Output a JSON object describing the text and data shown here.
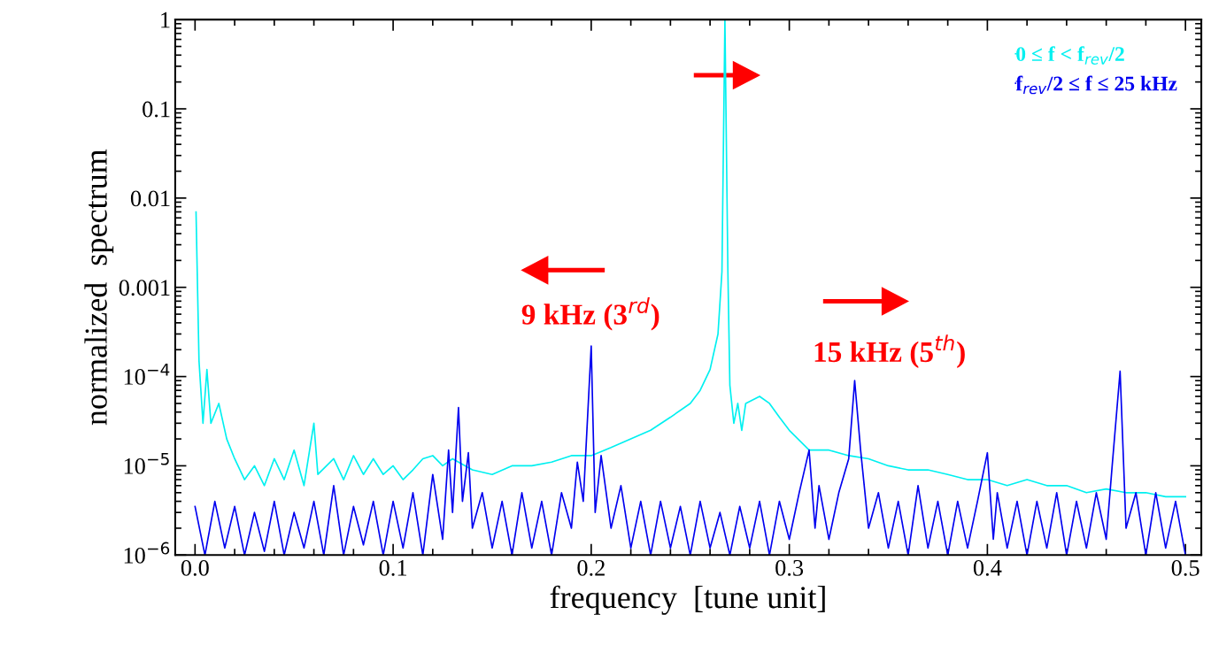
{
  "chart_data": {
    "type": "line",
    "xlabel": "frequency  [tune unit]",
    "ylabel": "normalized  spectrum",
    "xlim": [
      -0.01,
      0.508
    ],
    "ylim": [
      1e-06,
      1
    ],
    "log": "y",
    "xticks": [
      {
        "value": 0,
        "label": "0.0"
      },
      0.1,
      0.2,
      0.3,
      0.4,
      {
        "value": 0.5,
        "label": "0.5"
      }
    ],
    "yticks": [
      {
        "value": 1e-06,
        "label": "10$^{−6}$"
      },
      {
        "value": 1e-05,
        "label": "10$^{−5}$"
      },
      {
        "value": 0.0001,
        "label": "10$^{−4}$"
      },
      0.001,
      0.01,
      0.1,
      1
    ],
    "legend": "top right",
    "grid": false,
    "annotations": [
      "9 kHz (3$^{rd}$)",
      "15 kHz (5$^{th}$)"
    ],
    "series": [
      {
        "name": "0 ≤ f < f$_{rev}$/2",
        "color": "#00f0f0",
        "x": [
          0.0005,
          0.002,
          0.004,
          0.006,
          0.008,
          0.012,
          0.016,
          0.02,
          0.025,
          0.03,
          0.035,
          0.04,
          0.045,
          0.05,
          0.055,
          0.06,
          0.062,
          0.07,
          0.075,
          0.08,
          0.085,
          0.09,
          0.095,
          0.1,
          0.105,
          0.11,
          0.115,
          0.12,
          0.125,
          0.13,
          0.14,
          0.15,
          0.16,
          0.17,
          0.18,
          0.19,
          0.2,
          0.21,
          0.22,
          0.23,
          0.24,
          0.25,
          0.255,
          0.26,
          0.264,
          0.266,
          0.2675,
          0.269,
          0.27,
          0.272,
          0.274,
          0.276,
          0.278,
          0.285,
          0.29,
          0.295,
          0.3,
          0.31,
          0.32,
          0.33,
          0.34,
          0.35,
          0.36,
          0.37,
          0.38,
          0.39,
          0.4,
          0.41,
          0.42,
          0.43,
          0.44,
          0.45,
          0.46,
          0.47,
          0.48,
          0.49,
          0.5
        ],
        "values": [
          0.007,
          0.00015,
          3e-05,
          0.00012,
          3e-05,
          5e-05,
          2e-05,
          1.2e-05,
          7e-06,
          1e-05,
          6e-06,
          1.2e-05,
          7e-06,
          1.5e-05,
          6e-06,
          3e-05,
          8e-06,
          1.2e-05,
          7e-06,
          1.3e-05,
          8e-06,
          1.2e-05,
          8e-06,
          1e-05,
          7e-06,
          9e-06,
          1.2e-05,
          1.3e-05,
          1e-05,
          1.2e-05,
          9e-06,
          8e-06,
          1e-05,
          1e-05,
          1.1e-05,
          1.3e-05,
          1.3e-05,
          1.6e-05,
          2e-05,
          2.5e-05,
          3.5e-05,
          5e-05,
          7e-05,
          0.00012,
          0.0003,
          0.0015,
          1,
          0.0015,
          8e-05,
          3e-05,
          5e-05,
          2.5e-05,
          5e-05,
          6e-05,
          5e-05,
          3.5e-05,
          2.5e-05,
          1.5e-05,
          1.5e-05,
          1.3e-05,
          1.2e-05,
          1e-05,
          9e-06,
          9e-06,
          8e-06,
          7e-06,
          7e-06,
          6e-06,
          7e-06,
          6e-06,
          6e-06,
          5e-06,
          5.5e-06,
          5e-06,
          5e-06,
          4.5e-06,
          4.5e-06
        ]
      },
      {
        "name": "f$_{rev}$/2 ≤ f ≤ 25 kHz",
        "color": "#0000f0",
        "x": [
          0,
          0.005,
          0.01,
          0.015,
          0.02,
          0.025,
          0.03,
          0.035,
          0.04,
          0.045,
          0.05,
          0.055,
          0.06,
          0.065,
          0.07,
          0.075,
          0.08,
          0.085,
          0.09,
          0.095,
          0.1,
          0.105,
          0.11,
          0.115,
          0.12,
          0.125,
          0.128,
          0.13,
          0.133,
          0.135,
          0.138,
          0.14,
          0.145,
          0.15,
          0.155,
          0.16,
          0.165,
          0.17,
          0.175,
          0.18,
          0.185,
          0.19,
          0.193,
          0.196,
          0.2,
          0.202,
          0.205,
          0.21,
          0.215,
          0.22,
          0.225,
          0.23,
          0.235,
          0.24,
          0.245,
          0.25,
          0.255,
          0.26,
          0.265,
          0.27,
          0.275,
          0.28,
          0.285,
          0.29,
          0.295,
          0.3,
          0.305,
          0.31,
          0.313,
          0.315,
          0.32,
          0.325,
          0.33,
          0.333,
          0.336,
          0.34,
          0.345,
          0.35,
          0.355,
          0.36,
          0.365,
          0.37,
          0.375,
          0.38,
          0.385,
          0.39,
          0.395,
          0.4,
          0.403,
          0.405,
          0.41,
          0.415,
          0.42,
          0.425,
          0.43,
          0.435,
          0.44,
          0.445,
          0.45,
          0.455,
          0.46,
          0.463,
          0.467,
          0.47,
          0.475,
          0.48,
          0.485,
          0.49,
          0.495,
          0.5
        ],
        "values": [
          3.5e-06,
          1e-06,
          4e-06,
          1.2e-06,
          3.5e-06,
          1e-06,
          3e-06,
          1.1e-06,
          4e-06,
          1e-06,
          3e-06,
          1.2e-06,
          4e-06,
          1e-06,
          6e-06,
          1e-06,
          3.5e-06,
          1.3e-06,
          4e-06,
          1e-06,
          4e-06,
          1.2e-06,
          5e-06,
          1e-06,
          8e-06,
          1.5e-06,
          1.5e-05,
          3e-06,
          4.5e-05,
          4e-06,
          1.4e-05,
          2e-06,
          5e-06,
          1.2e-06,
          4e-06,
          1e-06,
          5e-06,
          1.2e-06,
          4e-06,
          1e-06,
          5e-06,
          2e-06,
          1.1e-05,
          4e-06,
          0.00022,
          3e-06,
          1.3e-05,
          2e-06,
          6e-06,
          1.2e-06,
          4e-06,
          1e-06,
          4e-06,
          1.2e-06,
          3.5e-06,
          1e-06,
          4e-06,
          1.2e-06,
          3e-06,
          1e-06,
          3.5e-06,
          1.2e-06,
          4e-06,
          1e-06,
          4e-06,
          1.5e-06,
          5e-06,
          1.5e-05,
          2e-06,
          6e-06,
          1.5e-06,
          5e-06,
          1.2e-05,
          9e-05,
          1.5e-05,
          2e-06,
          5e-06,
          1.2e-06,
          4e-06,
          1e-06,
          6e-06,
          1.2e-06,
          4e-06,
          1e-06,
          4e-06,
          1.2e-06,
          4e-06,
          1.4e-05,
          1.5e-06,
          5e-06,
          1.2e-06,
          4e-06,
          1e-06,
          4e-06,
          1.2e-06,
          5e-06,
          1e-06,
          4e-06,
          1.2e-06,
          5e-06,
          1.5e-06,
          1e-05,
          0.000115,
          2e-06,
          5e-06,
          1e-06,
          5e-06,
          1.2e-06,
          4e-06,
          1e-06
        ]
      }
    ]
  }
}
